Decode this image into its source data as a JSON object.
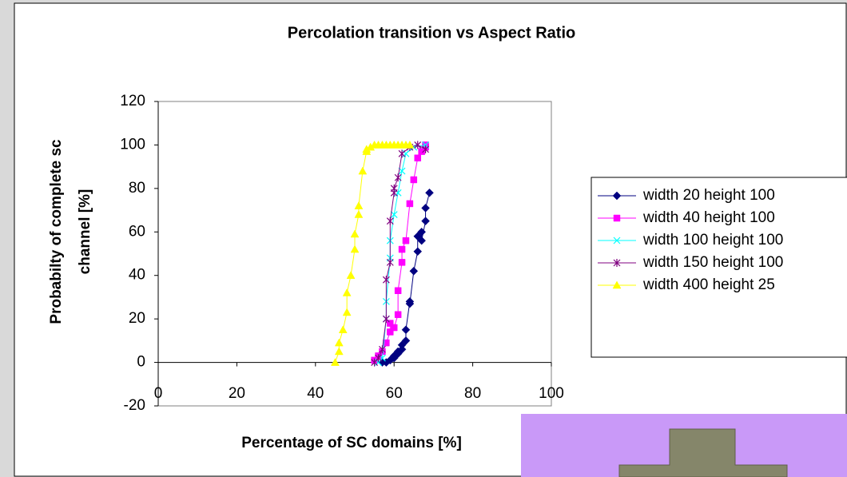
{
  "chart_data": {
    "type": "scatter",
    "title": "Percolation transition vs Aspect Ratio",
    "x_label": "Percentage of SC domains [%]",
    "y_label": [
      "Probabilty of complete sc",
      "channel [%]"
    ],
    "xlim": [
      0,
      100
    ],
    "xticks": [
      0,
      20,
      40,
      60,
      80,
      100
    ],
    "ylim": [
      -20,
      120
    ],
    "yticks": [
      -20,
      0,
      20,
      40,
      60,
      80,
      100,
      120
    ],
    "series": [
      {
        "name": "width 20 height 100",
        "color": "#000080",
        "marker": "diamond",
        "x": [
          57,
          58,
          59,
          60,
          60,
          61,
          61,
          62,
          62,
          63,
          63,
          64,
          64,
          65,
          66,
          66,
          67,
          67,
          68,
          68,
          69
        ],
        "values": [
          0,
          0,
          1,
          2,
          3,
          4,
          5,
          6,
          8,
          10,
          15,
          28,
          27,
          42,
          51,
          58,
          60,
          56,
          65,
          71,
          78
        ]
      },
      {
        "name": "width 40 height 100",
        "color": "#ff00ff",
        "marker": "square",
        "x": [
          55,
          56,
          57,
          58,
          59,
          59,
          60,
          61,
          61,
          62,
          62,
          63,
          64,
          65,
          66,
          67,
          68,
          68
        ],
        "values": [
          1,
          3,
          5,
          9,
          14,
          18,
          16,
          22,
          33,
          46,
          52,
          56,
          73,
          84,
          94,
          97,
          99,
          100
        ]
      },
      {
        "name": "width 100 height 100",
        "color": "#00ffff",
        "marker": "cross",
        "x": [
          56,
          57,
          58,
          58,
          59,
          59,
          60,
          61,
          62,
          63,
          65,
          68
        ],
        "values": [
          0,
          2,
          20,
          28,
          48,
          56,
          68,
          78,
          88,
          96,
          99,
          100
        ]
      },
      {
        "name": "width 150 height 100",
        "color": "#800080",
        "marker": "star",
        "x": [
          55,
          56,
          57,
          58,
          58,
          59,
          59,
          60,
          60,
          61,
          62,
          64,
          66,
          68
        ],
        "values": [
          0,
          2,
          6,
          20,
          38,
          46,
          65,
          78,
          80,
          85,
          96,
          99,
          100,
          98
        ]
      },
      {
        "name": "width 400 height 25",
        "color": "#ffff00",
        "marker": "triangle",
        "x": [
          45,
          46,
          46,
          47,
          48,
          48,
          49,
          50,
          50,
          51,
          51,
          52,
          53,
          53,
          54,
          55,
          56,
          57,
          58,
          59,
          60,
          61,
          62,
          63,
          64
        ],
        "values": [
          0,
          5,
          9,
          15,
          23,
          32,
          40,
          52,
          59,
          68,
          72,
          88,
          97,
          98,
          99,
          100,
          100,
          100,
          100,
          100,
          100,
          100,
          100,
          100,
          100
        ]
      }
    ]
  }
}
